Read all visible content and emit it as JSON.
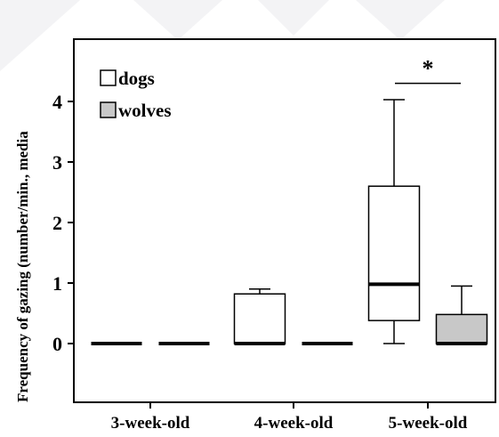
{
  "chart_data": {
    "type": "box",
    "ylabel": "Frequency of gazing (number/min., media",
    "categories": [
      "3-week-old",
      "4-week-old",
      "5-week-old"
    ],
    "ylim": [
      -0.9,
      5.0
    ],
    "yticks": [
      0,
      1,
      2,
      3,
      4
    ],
    "grid": false,
    "legend": {
      "placement": "top-left"
    },
    "series": [
      {
        "name": "dogs",
        "color": "#ffffff",
        "boxes": [
          {
            "category": "3-week-old",
            "min": 0,
            "q1": 0,
            "median": 0,
            "q3": 0,
            "max": 0
          },
          {
            "category": "4-week-old",
            "min": 0,
            "q1": 0,
            "median": 0,
            "q3": 0.82,
            "max": 0.9
          },
          {
            "category": "5-week-old",
            "min": 0,
            "q1": 0.38,
            "median": 0.98,
            "q3": 2.6,
            "max": 4.03
          }
        ]
      },
      {
        "name": "wolves",
        "color": "#c8c8c8",
        "boxes": [
          {
            "category": "3-week-old",
            "min": 0,
            "q1": 0,
            "median": 0,
            "q3": 0,
            "max": 0
          },
          {
            "category": "4-week-old",
            "min": 0,
            "q1": 0,
            "median": 0,
            "q3": 0,
            "max": 0
          },
          {
            "category": "5-week-old",
            "min": 0,
            "q1": 0,
            "median": 0,
            "q3": 0.48,
            "max": 0.95
          }
        ]
      }
    ],
    "annotations": [
      {
        "text": "*",
        "category": "5-week-old",
        "between": [
          "dogs",
          "wolves"
        ],
        "y": 4.3
      }
    ]
  }
}
